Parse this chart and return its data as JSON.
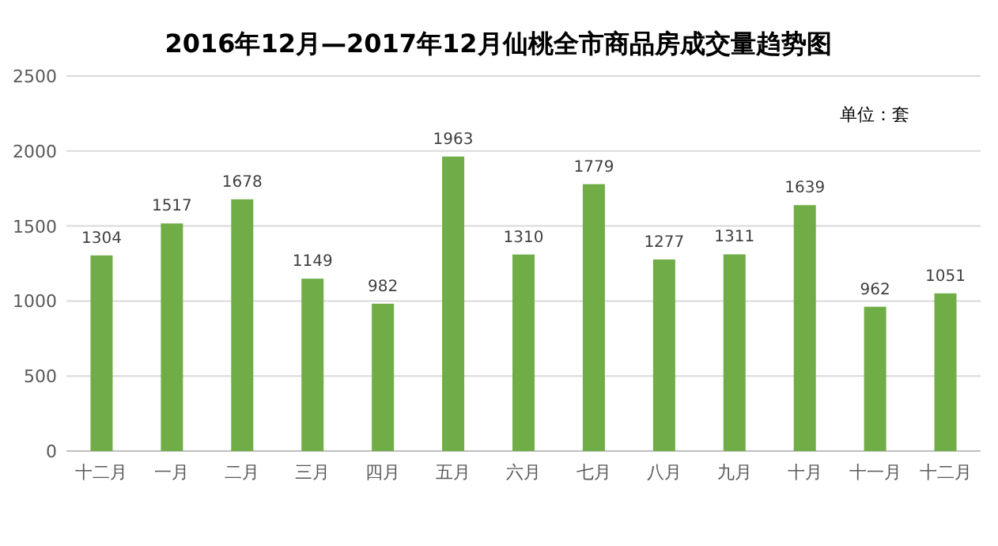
{
  "chart_data": {
    "type": "bar",
    "title": "2016年12月—2017年12月仙桃全市商品房成交量趋势图",
    "annotations": [
      "单位：套"
    ],
    "categories": [
      "十二月",
      "一月",
      "二月",
      "三月",
      "四月",
      "五月",
      "六月",
      "七月",
      "八月",
      "九月",
      "十月",
      "十一月",
      "十二月"
    ],
    "values": [
      1304,
      1517,
      1678,
      1149,
      982,
      1963,
      1310,
      1779,
      1277,
      1311,
      1639,
      962,
      1051
    ],
    "color": "#70ad47",
    "ylim": [
      0,
      2500
    ],
    "yticks": [
      0,
      500,
      1000,
      1500,
      2000,
      2500
    ],
    "grid": "y",
    "data_labels": true
  }
}
